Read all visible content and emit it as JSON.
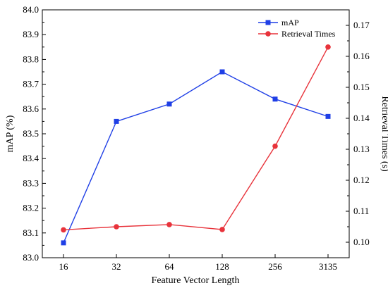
{
  "chart_data": {
    "type": "line",
    "categories": [
      "16",
      "32",
      "64",
      "128",
      "256",
      "3135"
    ],
    "xlabel": "Feature Vector Length",
    "ylabel": "mAP (%)",
    "y2label": "Retrieval Times (s)",
    "ylim": [
      83.0,
      84.0
    ],
    "y2lim": [
      0.095,
      0.175
    ],
    "yticks": [
      "83.0",
      "83.1",
      "83.2",
      "83.3",
      "83.4",
      "83.5",
      "83.6",
      "83.7",
      "83.8",
      "83.9",
      "84.0"
    ],
    "y2ticks": [
      "0.10",
      "0.11",
      "0.12",
      "0.13",
      "0.14",
      "0.15",
      "0.16",
      "0.17"
    ],
    "legend_position": "top-right",
    "series": [
      {
        "name": "mAP",
        "axis": "left",
        "color": "#1f3fe6",
        "marker": "square",
        "values": [
          83.06,
          83.55,
          83.62,
          83.75,
          83.64,
          83.57
        ]
      },
      {
        "name": "Retrieval Times",
        "axis": "right",
        "color": "#e8333b",
        "marker": "circle",
        "values": [
          0.104,
          0.105,
          0.1057,
          0.1041,
          0.131,
          0.163
        ]
      }
    ]
  }
}
